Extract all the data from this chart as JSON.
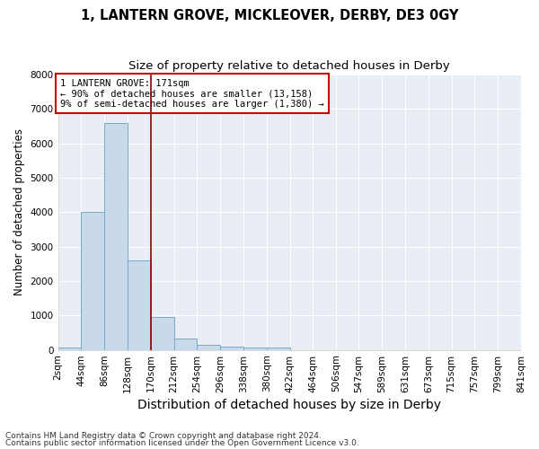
{
  "title": "1, LANTERN GROVE, MICKLEOVER, DERBY, DE3 0GY",
  "subtitle": "Size of property relative to detached houses in Derby",
  "xlabel": "Distribution of detached houses by size in Derby",
  "ylabel": "Number of detached properties",
  "footnote1": "Contains HM Land Registry data © Crown copyright and database right 2024.",
  "footnote2": "Contains public sector information licensed under the Open Government Licence v3.0.",
  "annotation_line1": "1 LANTERN GROVE: 171sqm",
  "annotation_line2": "← 90% of detached houses are smaller (13,158)",
  "annotation_line3": "9% of semi-detached houses are larger (1,380) →",
  "bar_color": "#c8d9ea",
  "bar_edge_color": "#7aaac8",
  "vline_color": "#8b0000",
  "vline_x": 171,
  "bin_edges": [
    2,
    44,
    86,
    128,
    170,
    212,
    254,
    296,
    338,
    380,
    422,
    464,
    506,
    547,
    589,
    631,
    673,
    715,
    757,
    799,
    841
  ],
  "bar_heights": [
    75,
    4000,
    6600,
    2600,
    950,
    320,
    140,
    100,
    65,
    80,
    0,
    0,
    0,
    0,
    0,
    0,
    0,
    0,
    0,
    0
  ],
  "ylim": [
    0,
    8000
  ],
  "xlim": [
    2,
    841
  ],
  "yticks": [
    0,
    1000,
    2000,
    3000,
    4000,
    5000,
    6000,
    7000,
    8000
  ],
  "xtick_labels": [
    "2sqm",
    "44sqm",
    "86sqm",
    "128sqm",
    "170sqm",
    "212sqm",
    "254sqm",
    "296sqm",
    "338sqm",
    "380sqm",
    "422sqm",
    "464sqm",
    "506sqm",
    "547sqm",
    "589sqm",
    "631sqm",
    "673sqm",
    "715sqm",
    "757sqm",
    "799sqm",
    "841sqm"
  ],
  "bg_color": "#ffffff",
  "plot_bg_color": "#e8eef4",
  "grid_color": "#ffffff",
  "title_fontsize": 10.5,
  "subtitle_fontsize": 9.5,
  "xlabel_fontsize": 10,
  "ylabel_fontsize": 8.5,
  "tick_fontsize": 7.5,
  "annotation_fontsize": 7.5,
  "footnote_fontsize": 6.5,
  "annotation_box_edgecolor": "#cc0000"
}
